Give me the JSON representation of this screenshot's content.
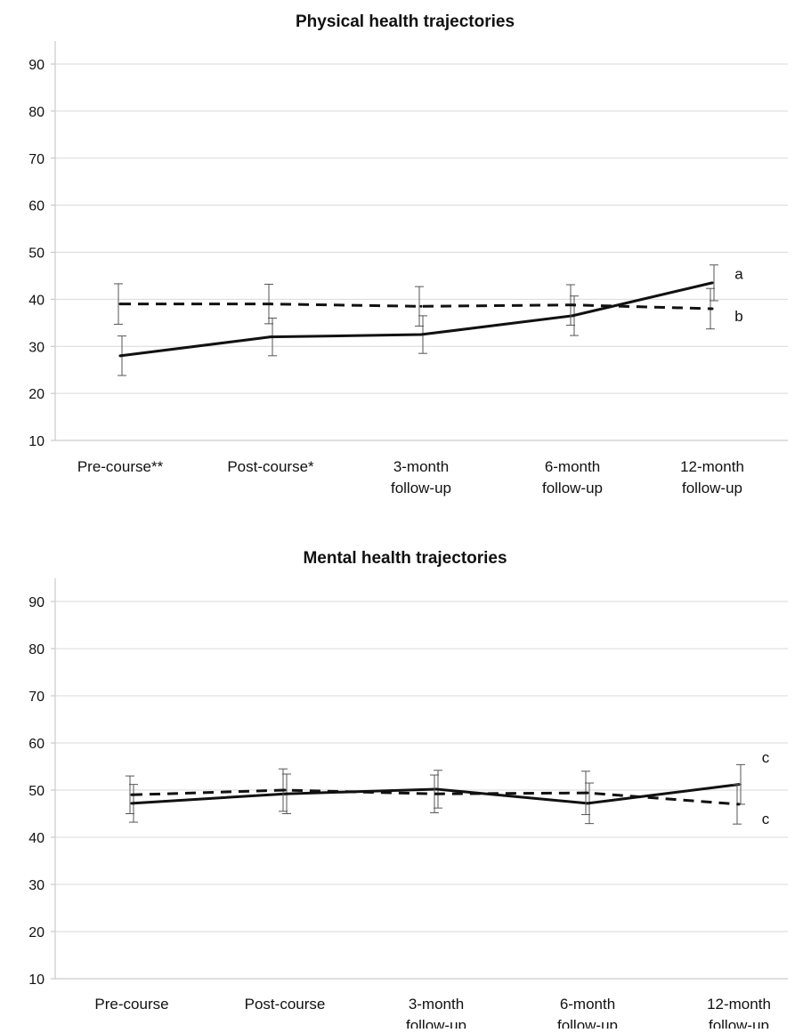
{
  "chart_data": [
    {
      "type": "line",
      "title": "Physical health trajectories",
      "xlabel": "",
      "ylabel": "",
      "ylim": [
        10,
        90
      ],
      "yticks": [
        10,
        20,
        30,
        40,
        50,
        60,
        70,
        80,
        90
      ],
      "grid": true,
      "categories": [
        [
          "Pre-course**"
        ],
        [
          "Post-course*"
        ],
        [
          "3-month",
          "follow-up"
        ],
        [
          "6-month",
          "follow-up"
        ],
        [
          "12-month",
          "follow-up"
        ]
      ],
      "series": [
        {
          "style": "solid",
          "values": [
            28,
            32,
            32.5,
            36.5,
            43.5
          ],
          "error": [
            4.2,
            4,
            4,
            4.2,
            3.8
          ]
        },
        {
          "style": "dashed",
          "values": [
            39,
            39,
            38.5,
            38.8,
            38
          ],
          "error": [
            4.3,
            4.2,
            4.2,
            4.3,
            4.3
          ]
        }
      ],
      "annotations": [
        {
          "text": "a",
          "x_index": 4,
          "y": 45.5
        },
        {
          "text": "b",
          "x_index": 4,
          "y": 36.5
        }
      ]
    },
    {
      "type": "line",
      "title": "Mental health trajectories",
      "xlabel": "",
      "ylabel": "",
      "ylim": [
        10,
        90
      ],
      "yticks": [
        10,
        20,
        30,
        40,
        50,
        60,
        70,
        80,
        90
      ],
      "grid": true,
      "categories": [
        [
          "Pre-course"
        ],
        [
          "Post-course"
        ],
        [
          "3-month",
          "follow-up"
        ],
        [
          "6-month",
          "follow-up"
        ],
        [
          "12-month",
          "follow-up"
        ]
      ],
      "series": [
        {
          "style": "solid",
          "values": [
            47.2,
            49.2,
            50.2,
            47.2,
            51.2
          ],
          "error": [
            4,
            4.2,
            4,
            4.3,
            4.2
          ]
        },
        {
          "style": "dashed",
          "values": [
            49,
            50,
            49.2,
            49.4,
            47
          ],
          "error": [
            4,
            4.5,
            4,
            4.6,
            4.2
          ]
        }
      ],
      "annotations": [
        {
          "text": "c",
          "x_index": 4,
          "y": 57
        },
        {
          "text": "c",
          "x_index": 4,
          "y": 44
        }
      ]
    }
  ]
}
